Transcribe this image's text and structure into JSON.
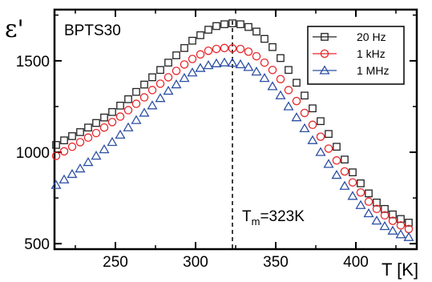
{
  "chart_data": {
    "type": "scatter",
    "title": "",
    "xlabel": "T [K]",
    "ylabel": "ε'",
    "xlim": [
      212,
      438
    ],
    "ylim": [
      470,
      1780
    ],
    "xticks": [
      250,
      300,
      350,
      400
    ],
    "yticks": [
      500,
      1000,
      1500
    ],
    "grid": false,
    "legend_position": "top-right",
    "sample_label": "BPTS30",
    "annotation": {
      "text_main": "T",
      "text_sub": "m",
      "text_rest": "=323K",
      "x": 323
    },
    "x": [
      213,
      218,
      223,
      228,
      233,
      238,
      243,
      248,
      253,
      258,
      263,
      268,
      273,
      278,
      283,
      288,
      293,
      298,
      303,
      308,
      313,
      318,
      323,
      328,
      333,
      338,
      343,
      348,
      353,
      358,
      363,
      368,
      373,
      378,
      383,
      388,
      393,
      398,
      403,
      408,
      413,
      418,
      423,
      428,
      433
    ],
    "series": [
      {
        "name": "20 Hz",
        "marker": "square",
        "color": "#222222",
        "values": [
          1040,
          1065,
          1088,
          1110,
          1135,
          1160,
          1190,
          1220,
          1255,
          1290,
          1330,
          1370,
          1410,
          1450,
          1490,
          1530,
          1570,
          1610,
          1640,
          1670,
          1690,
          1700,
          1705,
          1700,
          1685,
          1660,
          1620,
          1575,
          1515,
          1450,
          1380,
          1310,
          1240,
          1170,
          1100,
          1030,
          960,
          890,
          830,
          775,
          725,
          690,
          660,
          635,
          615
        ]
      },
      {
        "name": "1 kHz",
        "marker": "circle",
        "color": "#e8262a",
        "values": [
          980,
          1005,
          1030,
          1055,
          1080,
          1105,
          1135,
          1165,
          1195,
          1230,
          1265,
          1300,
          1340,
          1375,
          1410,
          1445,
          1480,
          1510,
          1535,
          1555,
          1565,
          1570,
          1568,
          1565,
          1550,
          1525,
          1490,
          1450,
          1400,
          1340,
          1280,
          1215,
          1150,
          1085,
          1020,
          955,
          895,
          835,
          780,
          730,
          690,
          655,
          625,
          600,
          580
        ]
      },
      {
        "name": "1 MHz",
        "marker": "triangle",
        "color": "#2c4fa3",
        "values": [
          820,
          850,
          880,
          910,
          945,
          980,
          1015,
          1055,
          1095,
          1135,
          1175,
          1215,
          1255,
          1295,
          1335,
          1370,
          1405,
          1435,
          1460,
          1475,
          1485,
          1490,
          1488,
          1480,
          1465,
          1440,
          1405,
          1360,
          1310,
          1250,
          1190,
          1130,
          1065,
          1000,
          935,
          875,
          815,
          760,
          710,
          665,
          625,
          595,
          570,
          550,
          535
        ]
      }
    ]
  }
}
